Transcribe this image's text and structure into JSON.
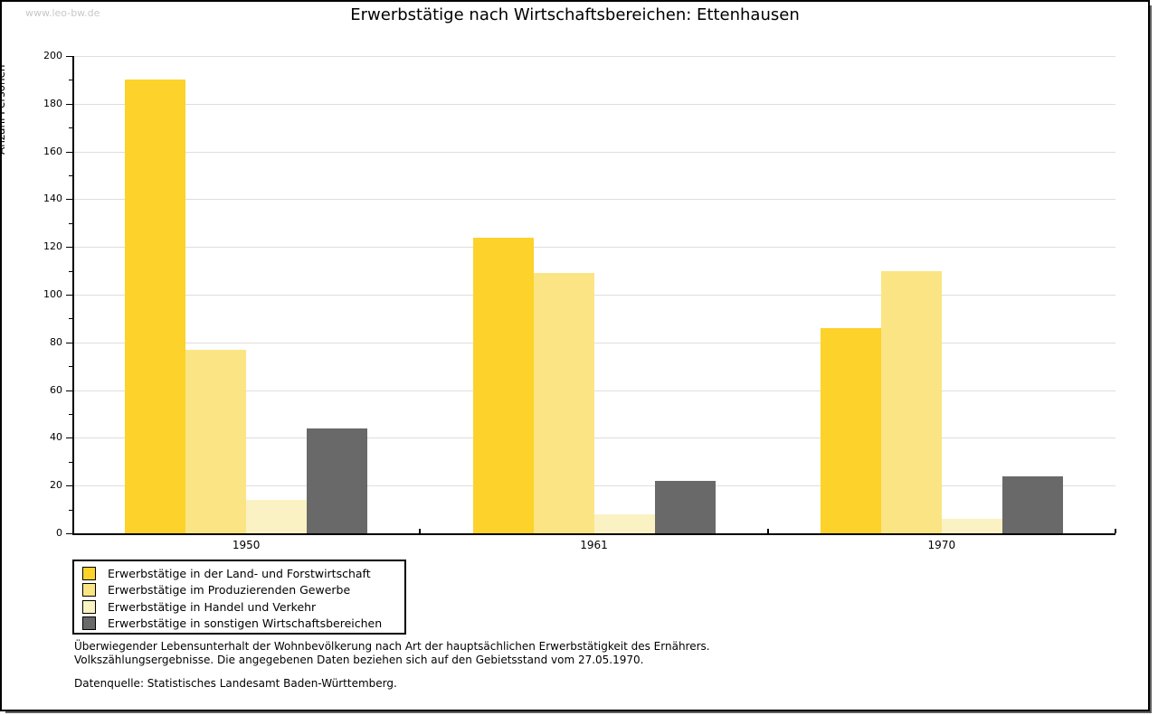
{
  "watermark": "www.leo-bw.de",
  "header": {
    "title": "Erwerbstätige nach Wirtschaftsbereichen: Ettenhausen"
  },
  "footnotes": {
    "line1": "Überwiegender Lebensunterhalt der Wohnbevölkerung nach Art der hauptsächlichen Erwerbstätigkeit des Ernährers.",
    "line2": "Volkszählungsergebnisse. Die angegebenen Daten beziehen sich auf den Gebietsstand vom 27.05.1970.",
    "source": "Datenquelle: Statistisches Landesamt Baden-Württemberg."
  },
  "chart_data": {
    "type": "bar",
    "title": "Erwerbstätige nach Wirtschaftsbereichen: Ettenhausen",
    "xlabel": "",
    "ylabel": "Anzahl Personen",
    "categories": [
      "1950",
      "1961",
      "1970"
    ],
    "series": [
      {
        "name": "Erwerbstätige in der Land- und Forstwirtschaft",
        "color": "#fcd22b",
        "values": [
          190,
          124,
          86
        ]
      },
      {
        "name": "Erwerbstätige im Produzierenden Gewerbe",
        "color": "#fbe483",
        "values": [
          77,
          109,
          110
        ]
      },
      {
        "name": "Erwerbstätige in Handel und Verkehr",
        "color": "#fbf2c4",
        "values": [
          14,
          8,
          6
        ]
      },
      {
        "name": "Erwerbstätige in sonstigen Wirtschaftsbereichen",
        "color": "#696969",
        "values": [
          44,
          22,
          24
        ]
      }
    ],
    "ylim": [
      0,
      200
    ],
    "ytick_step": 20,
    "y_minor_step": 10,
    "grid": true,
    "gridline_color": "#dedede",
    "legend_position": "bottom-left"
  }
}
